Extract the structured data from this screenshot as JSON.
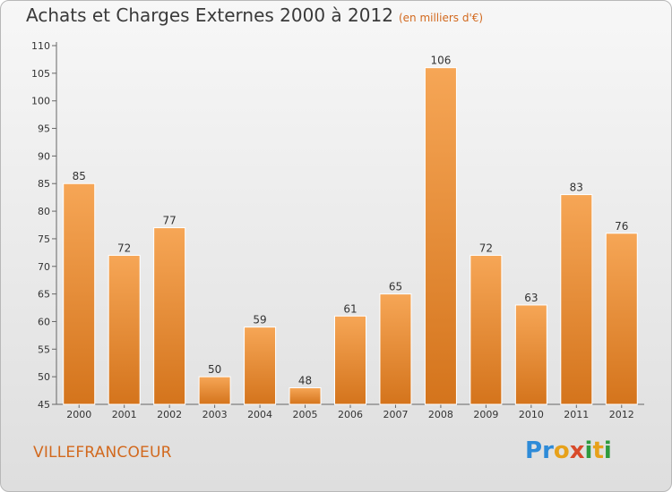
{
  "header": {
    "title": "Achats et Charges Externes 2000 à 2012",
    "subtitle": "(en milliers d'€)"
  },
  "footer": {
    "location": "VILLEFRANCOEUR",
    "logo_text": "Proxiti"
  },
  "colors": {
    "bar_light": "#f6a656",
    "bar_dark": "#d4741c",
    "accent": "#d2691e",
    "axis": "#666666"
  },
  "chart_data": {
    "type": "bar",
    "title": "Achats et Charges Externes 2000 à 2012",
    "subtitle": "(en milliers d'€)",
    "categories": [
      "2000",
      "2001",
      "2002",
      "2003",
      "2004",
      "2005",
      "2006",
      "2007",
      "2008",
      "2009",
      "2010",
      "2011",
      "2012"
    ],
    "values": [
      85,
      72,
      77,
      50,
      59,
      48,
      61,
      65,
      106,
      72,
      63,
      83,
      76
    ],
    "ylim": [
      45,
      110
    ],
    "yticks": [
      45,
      50,
      55,
      60,
      65,
      70,
      75,
      80,
      85,
      90,
      95,
      100,
      105,
      110
    ],
    "xlabel": "",
    "ylabel": "",
    "grid": false,
    "data_labels": true
  }
}
